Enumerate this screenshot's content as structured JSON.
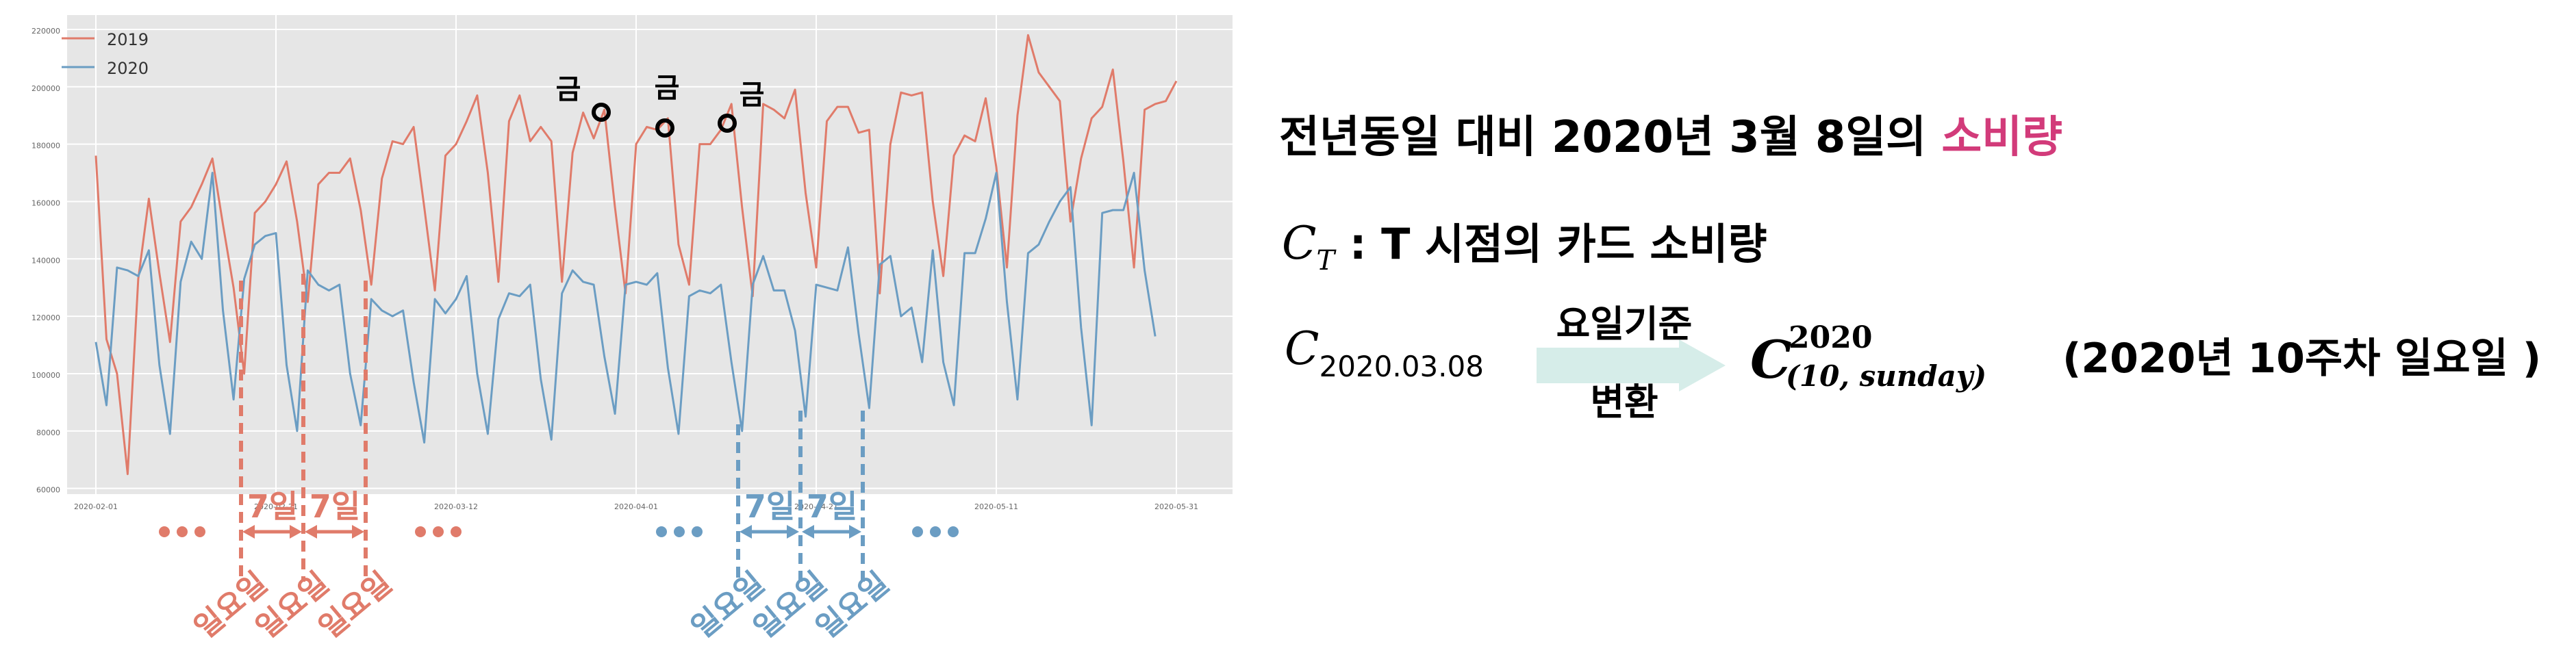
{
  "chart_data": {
    "type": "line",
    "x_ticks": [
      "2020-02-01",
      "2020-02-21",
      "2020-03-12",
      "2020-04-01",
      "2020-04-21",
      "2020-05-11",
      "2020-05-31"
    ],
    "y_ticks": [
      "60000",
      "80000",
      "100000",
      "120000",
      "140000",
      "160000",
      "180000",
      "200000",
      "220000"
    ],
    "ylim": [
      58000,
      225000
    ],
    "legend_position": "top-left",
    "grid": true,
    "series": [
      {
        "name": "2019",
        "color": "#e07b6a",
        "values": [
          176000,
          112000,
          100000,
          65000,
          133000,
          161000,
          135000,
          111000,
          153000,
          158000,
          166000,
          175000,
          152000,
          130000,
          100000,
          156000,
          160000,
          166000,
          174000,
          153000,
          125000,
          166000,
          170000,
          170000,
          175000,
          157000,
          131000,
          168000,
          181000,
          180000,
          186000,
          158000,
          129000,
          176000,
          180000,
          188000,
          197000,
          170000,
          132000,
          188000,
          197000,
          181000,
          186000,
          181000,
          132000,
          177000,
          191000,
          182000,
          192000,
          158000,
          128000,
          180000,
          186000,
          185000,
          189000,
          145000,
          131000,
          180000,
          180000,
          185000,
          194000,
          158000,
          127000,
          194000,
          192000,
          189000,
          199000,
          163000,
          137000,
          188000,
          193000,
          193000,
          184000,
          185000,
          128000,
          180000,
          198000,
          197000,
          198000,
          160000,
          134000,
          176000,
          183000,
          181000,
          196000,
          172000,
          137000,
          190000,
          218000,
          205000,
          200000,
          195000,
          153000,
          175000,
          189000,
          193000,
          206000,
          174000,
          137000,
          192000,
          194000,
          195000,
          202000
        ]
      },
      {
        "name": "2020",
        "color": "#6b9dc3",
        "values": [
          111000,
          89000,
          137000,
          136000,
          134000,
          143000,
          103000,
          79000,
          132000,
          146000,
          140000,
          170000,
          122000,
          91000,
          133000,
          145000,
          148000,
          149000,
          103000,
          80000,
          136000,
          131000,
          129000,
          131000,
          100000,
          82000,
          126000,
          122000,
          120000,
          122000,
          97000,
          76000,
          126000,
          121000,
          126000,
          134000,
          100000,
          79000,
          119000,
          128000,
          127000,
          131000,
          98000,
          77000,
          128000,
          136000,
          132000,
          131000,
          106000,
          86000,
          131000,
          132000,
          131000,
          135000,
          102000,
          79000,
          127000,
          129000,
          128000,
          131000,
          104000,
          80000,
          131000,
          141000,
          129000,
          129000,
          115000,
          85000,
          131000,
          130000,
          129000,
          144000,
          114000,
          88000,
          138000,
          141000,
          120000,
          123000,
          104000,
          143000,
          104000,
          89000,
          142000,
          142000,
          154000,
          170000,
          125000,
          91000,
          142000,
          145000,
          153000,
          160000,
          165000,
          116000,
          82000,
          156000,
          157000,
          157000,
          170000,
          136000,
          113000
        ]
      }
    ]
  },
  "annotations": {
    "friday_label": "금",
    "seven_days": "7일",
    "sunday": "일요일"
  },
  "formula": {
    "line1_main": "전년동일 대비 2020년 3월 8일의 ",
    "line1_accent": "소비량",
    "line1_accent_color": "#d23b7a",
    "line2_symbol": "C",
    "line2_subscript": "T",
    "line2_text": " : T 시점의 카드 소비량",
    "line3_symbol": "C",
    "line3_subscript": "2020.03.08",
    "arrow_label_top": "요일기준",
    "arrow_label_bottom": "변환",
    "arrow_color": "#d6ede9",
    "target_symbol": "C",
    "target_superscript": "2020",
    "target_subscript": "(10, sunday)",
    "target_note": "(2020년 10주차 일요일 )"
  }
}
